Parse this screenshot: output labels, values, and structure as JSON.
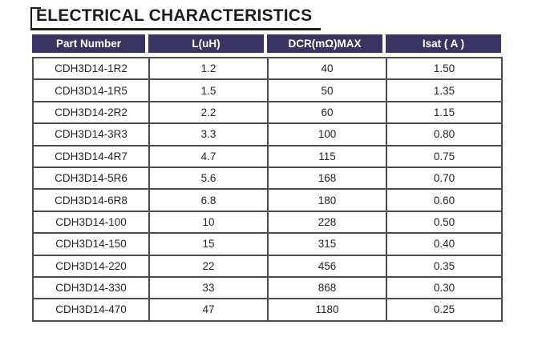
{
  "title": {
    "text": "ELECTRICAL CHARACTERISTICS"
  },
  "table": {
    "columns": [
      "Part Number",
      "L(uH)",
      "DCR(mΩ)MAX",
      "Isat ( A )"
    ],
    "rows": [
      [
        "CDH3D14-1R2",
        "1.2",
        "40",
        "1.50"
      ],
      [
        "CDH3D14-1R5",
        "1.5",
        "50",
        "1.35"
      ],
      [
        "CDH3D14-2R2",
        "2.2",
        "60",
        "1.15"
      ],
      [
        "CDH3D14-3R3",
        "3.3",
        "100",
        "0.80"
      ],
      [
        "CDH3D14-4R7",
        "4.7",
        "115",
        "0.75"
      ],
      [
        "CDH3D14-5R6",
        "5.6",
        "168",
        "0.70"
      ],
      [
        "CDH3D14-6R8",
        "6.8",
        "180",
        "0.60"
      ],
      [
        "CDH3D14-100",
        "10",
        "228",
        "0.50"
      ],
      [
        "CDH3D14-150",
        "15",
        "315",
        "0.40"
      ],
      [
        "CDH3D14-220",
        "22",
        "456",
        "0.35"
      ],
      [
        "CDH3D14-330",
        "33",
        "868",
        "0.30"
      ],
      [
        "CDH3D14-470",
        "47",
        "1180",
        "0.25"
      ]
    ]
  },
  "colors": {
    "header_bg": "#3a3462",
    "header_text": "#ffffff",
    "grid_border": "#4c4c4c",
    "body_text": "#262626",
    "title_text": "#1c1c1c"
  }
}
